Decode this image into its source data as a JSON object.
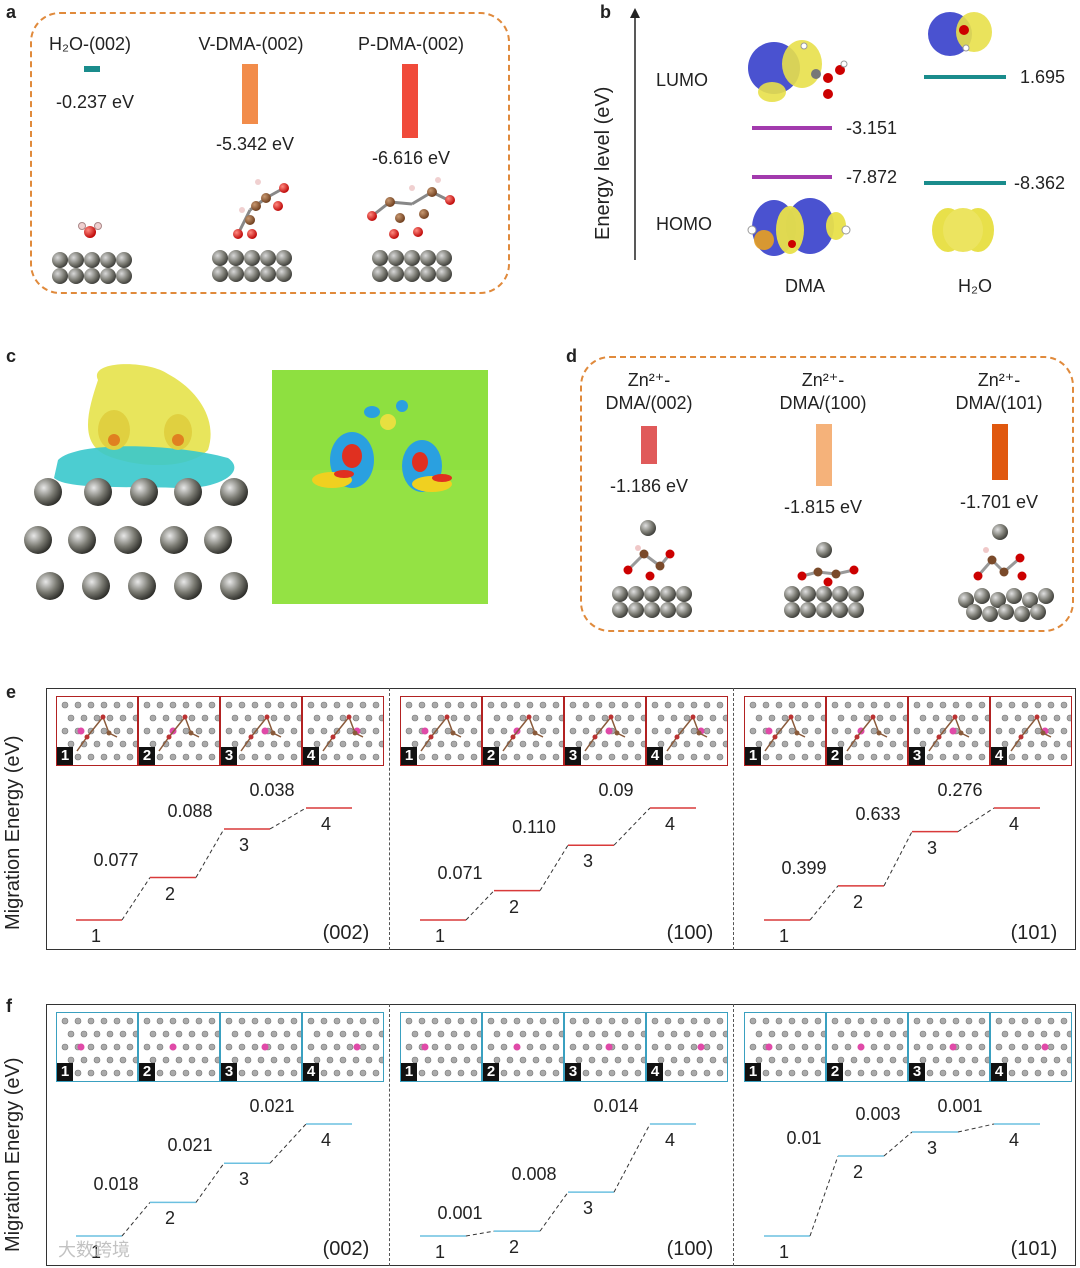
{
  "a": {
    "label": "a",
    "items": [
      {
        "title": "H₂O-(002)",
        "value": "-0.237 eV",
        "color": "#1a8c8c"
      },
      {
        "title": "V-DMA-(002)",
        "value": "-5.342 eV",
        "color": "#f28c4a"
      },
      {
        "title": "P-DMA-(002)",
        "value": "-6.616 eV",
        "color": "#f04a3a"
      }
    ]
  },
  "b": {
    "label": "b",
    "ylabel": "Energy level (eV)",
    "lumo": "LUMO",
    "homo": "HOMO",
    "dma": {
      "name": "DMA",
      "lumo": "-3.151",
      "homo": "-7.872",
      "color": "#a23aad"
    },
    "h2o": {
      "name": "H₂O",
      "lumo": "1.695",
      "homo": "-8.362",
      "color": "#1a8c8c"
    }
  },
  "c": {
    "label": "c"
  },
  "d": {
    "label": "d",
    "items": [
      {
        "title1": "Zn²⁺-",
        "title2": "DMA/(002)",
        "value": "-1.186 eV",
        "color": "#e05a5a"
      },
      {
        "title1": "Zn²⁺-",
        "title2": "DMA/(100)",
        "value": "-1.815 eV",
        "color": "#f5b27a"
      },
      {
        "title1": "Zn²⁺-",
        "title2": "DMA/(101)",
        "value": "-1.701 eV",
        "color": "#e0580e"
      }
    ]
  },
  "e": {
    "label": "e",
    "ylabel": "Migration Energy (eV)",
    "line_color": "#d93a3a",
    "frame_color": "#b22222",
    "panels": [
      {
        "facet": "(002)",
        "barriers": [
          "0.077",
          "0.088",
          "0.038"
        ],
        "levels": [
          0,
          0.077,
          0.165,
          0.203
        ]
      },
      {
        "facet": "(100)",
        "barriers": [
          "0.071",
          "0.110",
          "0.09"
        ],
        "levels": [
          0,
          0.071,
          0.181,
          0.271
        ]
      },
      {
        "facet": "(101)",
        "barriers": [
          "0.399",
          "0.633",
          "0.276"
        ],
        "levels": [
          0,
          0.399,
          1.032,
          1.308
        ]
      }
    ],
    "thumb_nums": [
      "1",
      "2",
      "3",
      "4"
    ],
    "step_labels": [
      "1",
      "2",
      "3",
      "4"
    ]
  },
  "f": {
    "label": "f",
    "ylabel": "Migration Energy (eV)",
    "line_color": "#6cc0e0",
    "frame_color": "#3aa0c0",
    "panels": [
      {
        "facet": "(002)",
        "barriers": [
          "0.018",
          "0.021",
          "0.021"
        ],
        "levels": [
          0,
          0.018,
          0.039,
          0.06
        ]
      },
      {
        "facet": "(100)",
        "barriers": [
          "0.001",
          "0.008",
          "0.014"
        ],
        "levels": [
          0,
          0.001,
          0.009,
          0.023
        ]
      },
      {
        "facet": "(101)",
        "barriers": [
          "0.01",
          "0.003",
          "0.001"
        ],
        "levels": [
          0,
          0.01,
          0.013,
          0.014
        ]
      }
    ],
    "thumb_nums": [
      "1",
      "2",
      "3",
      "4"
    ],
    "step_labels": [
      "1",
      "2",
      "3",
      "4"
    ]
  },
  "watermark": "大数跨境"
}
